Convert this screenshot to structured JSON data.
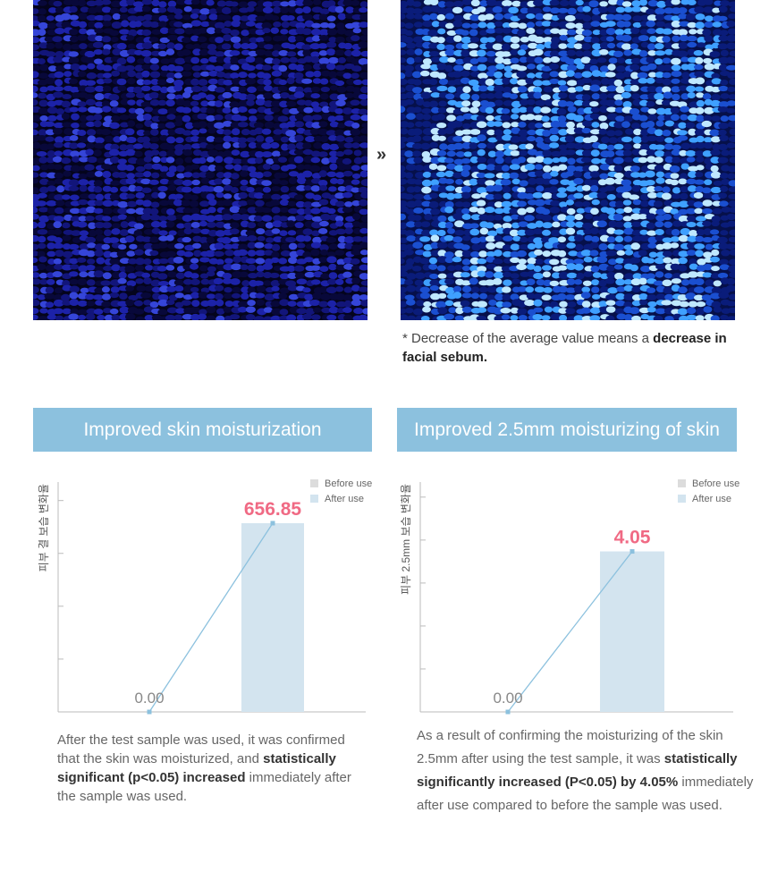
{
  "arrow_glyph": "»",
  "note": {
    "prefix": "* Decrease of the average value means a ",
    "bold1": "decrease in",
    "bold2": "facial sebum."
  },
  "headers": {
    "left": "Improved skin moisturization",
    "right": "Improved 2.5mm moisturizing of skin"
  },
  "colors": {
    "header_bg": "#8cc1de",
    "before_bar": "#dcdcdc",
    "after_bar": "#d3e4ef",
    "line": "#8cc1de",
    "value_label": "#f06a84"
  },
  "chart_data": [
    {
      "type": "bar",
      "ylabel": "피부 결 보습 변화율",
      "legend": [
        "Before use",
        "After use"
      ],
      "legend_position": "top-right",
      "categories": [
        "Before use",
        "After use"
      ],
      "values": [
        0.0,
        656.85
      ],
      "value_labels": [
        "0.00",
        "656.85"
      ],
      "ylim": [
        0,
        800
      ],
      "yticks": 4
    },
    {
      "type": "bar",
      "ylabel": "피부 2.5mm 보습 변화율",
      "legend": [
        "Before use",
        "After use"
      ],
      "legend_position": "top-right",
      "categories": [
        "Before use",
        "After use"
      ],
      "values": [
        0.0,
        4.05
      ],
      "value_labels": [
        "0.00",
        "4.05"
      ],
      "ylim": [
        0,
        5.8
      ],
      "yticks": 5
    }
  ],
  "desc1": {
    "t1": "After the test sample was used, it was confirmed",
    "t2": "that the skin was moisturized, and ",
    "b1": "statistically",
    "b2": "significant (p<0.05) increased",
    "t3": " immediately after",
    "t4": "the sample was used."
  },
  "desc2": {
    "t1": "As a result of confirming the moisturizing of the skin",
    "t2": "2.5mm after using the test sample, it was ",
    "b1": "statistically",
    "b2": "significantly increased (P<0.05) by 4.05%",
    "t3": " immediately",
    "t4": "after use compared to before the sample was used."
  }
}
